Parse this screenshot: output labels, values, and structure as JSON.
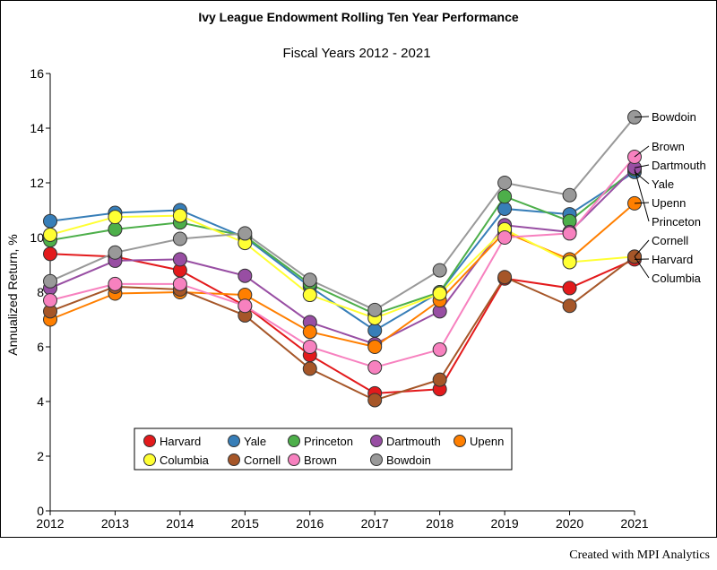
{
  "chart_data": {
    "type": "line",
    "title": "Ivy League Endowment Rolling Ten Year Performance",
    "subtitle": "Fiscal Years 2012 - 2021",
    "xlabel": "",
    "ylabel": "Annualized Return, %",
    "x": [
      "2012",
      "2013",
      "2014",
      "2015",
      "2016",
      "2017",
      "2018",
      "2019",
      "2020",
      "2021"
    ],
    "ylim": [
      0,
      16
    ],
    "yticks": [
      "0",
      "2",
      "4",
      "6",
      "8",
      "10",
      "12",
      "14",
      "16"
    ],
    "grid": false,
    "legend_position": "bottom-center",
    "series": [
      {
        "name": "Harvard",
        "color": "#e31a1c",
        "values": [
          9.4,
          9.3,
          8.8,
          7.5,
          5.7,
          4.3,
          4.45,
          8.5,
          8.15,
          9.2
        ]
      },
      {
        "name": "Yale",
        "color": "#377eb8",
        "values": [
          10.6,
          10.9,
          11.0,
          10.0,
          8.2,
          6.6,
          8.0,
          11.05,
          10.85,
          12.4
        ]
      },
      {
        "name": "Princeton",
        "color": "#4daf4a",
        "values": [
          9.9,
          10.3,
          10.55,
          10.05,
          8.3,
          7.2,
          8.0,
          11.5,
          10.6,
          12.5
        ]
      },
      {
        "name": "Dartmouth",
        "color": "#984ea3",
        "values": [
          8.15,
          9.15,
          9.2,
          8.6,
          6.9,
          6.1,
          7.3,
          10.45,
          10.2,
          12.55
        ]
      },
      {
        "name": "Upenn",
        "color": "#ff7f00",
        "values": [
          7.0,
          7.95,
          8.0,
          7.9,
          6.55,
          6.0,
          7.7,
          10.2,
          9.2,
          11.25
        ]
      },
      {
        "name": "Columbia",
        "color": "#ffff33",
        "values": [
          10.1,
          10.75,
          10.8,
          9.8,
          7.9,
          7.05,
          7.95,
          10.3,
          9.1,
          9.3
        ]
      },
      {
        "name": "Cornell",
        "color": "#a65628",
        "values": [
          7.3,
          8.2,
          8.1,
          7.15,
          5.2,
          4.05,
          4.8,
          8.55,
          7.5,
          9.3
        ]
      },
      {
        "name": "Brown",
        "color": "#f781bf",
        "values": [
          7.7,
          8.3,
          8.3,
          7.5,
          6.0,
          5.25,
          5.9,
          10.0,
          10.15,
          12.95
        ]
      },
      {
        "name": "Bowdoin",
        "color": "#999999",
        "values": [
          8.4,
          9.45,
          9.95,
          10.15,
          8.45,
          7.35,
          8.8,
          12.0,
          11.55,
          14.4
        ]
      }
    ],
    "end_labels": [
      {
        "series": "Bowdoin",
        "label": "Bowdoin"
      },
      {
        "series": "Brown",
        "label": "Brown"
      },
      {
        "series": "Dartmouth",
        "label": "Dartmouth"
      },
      {
        "series": "Yale",
        "label": "Yale"
      },
      {
        "series": "Upenn",
        "label": "Upenn"
      },
      {
        "series": "Princeton",
        "label": "Princeton"
      },
      {
        "series": "Cornell",
        "label": "Cornell"
      },
      {
        "series": "Harvard",
        "label": "Harvard"
      },
      {
        "series": "Columbia",
        "label": "Columbia"
      }
    ]
  },
  "footer": {
    "credit": "Created with MPI Analytics"
  }
}
